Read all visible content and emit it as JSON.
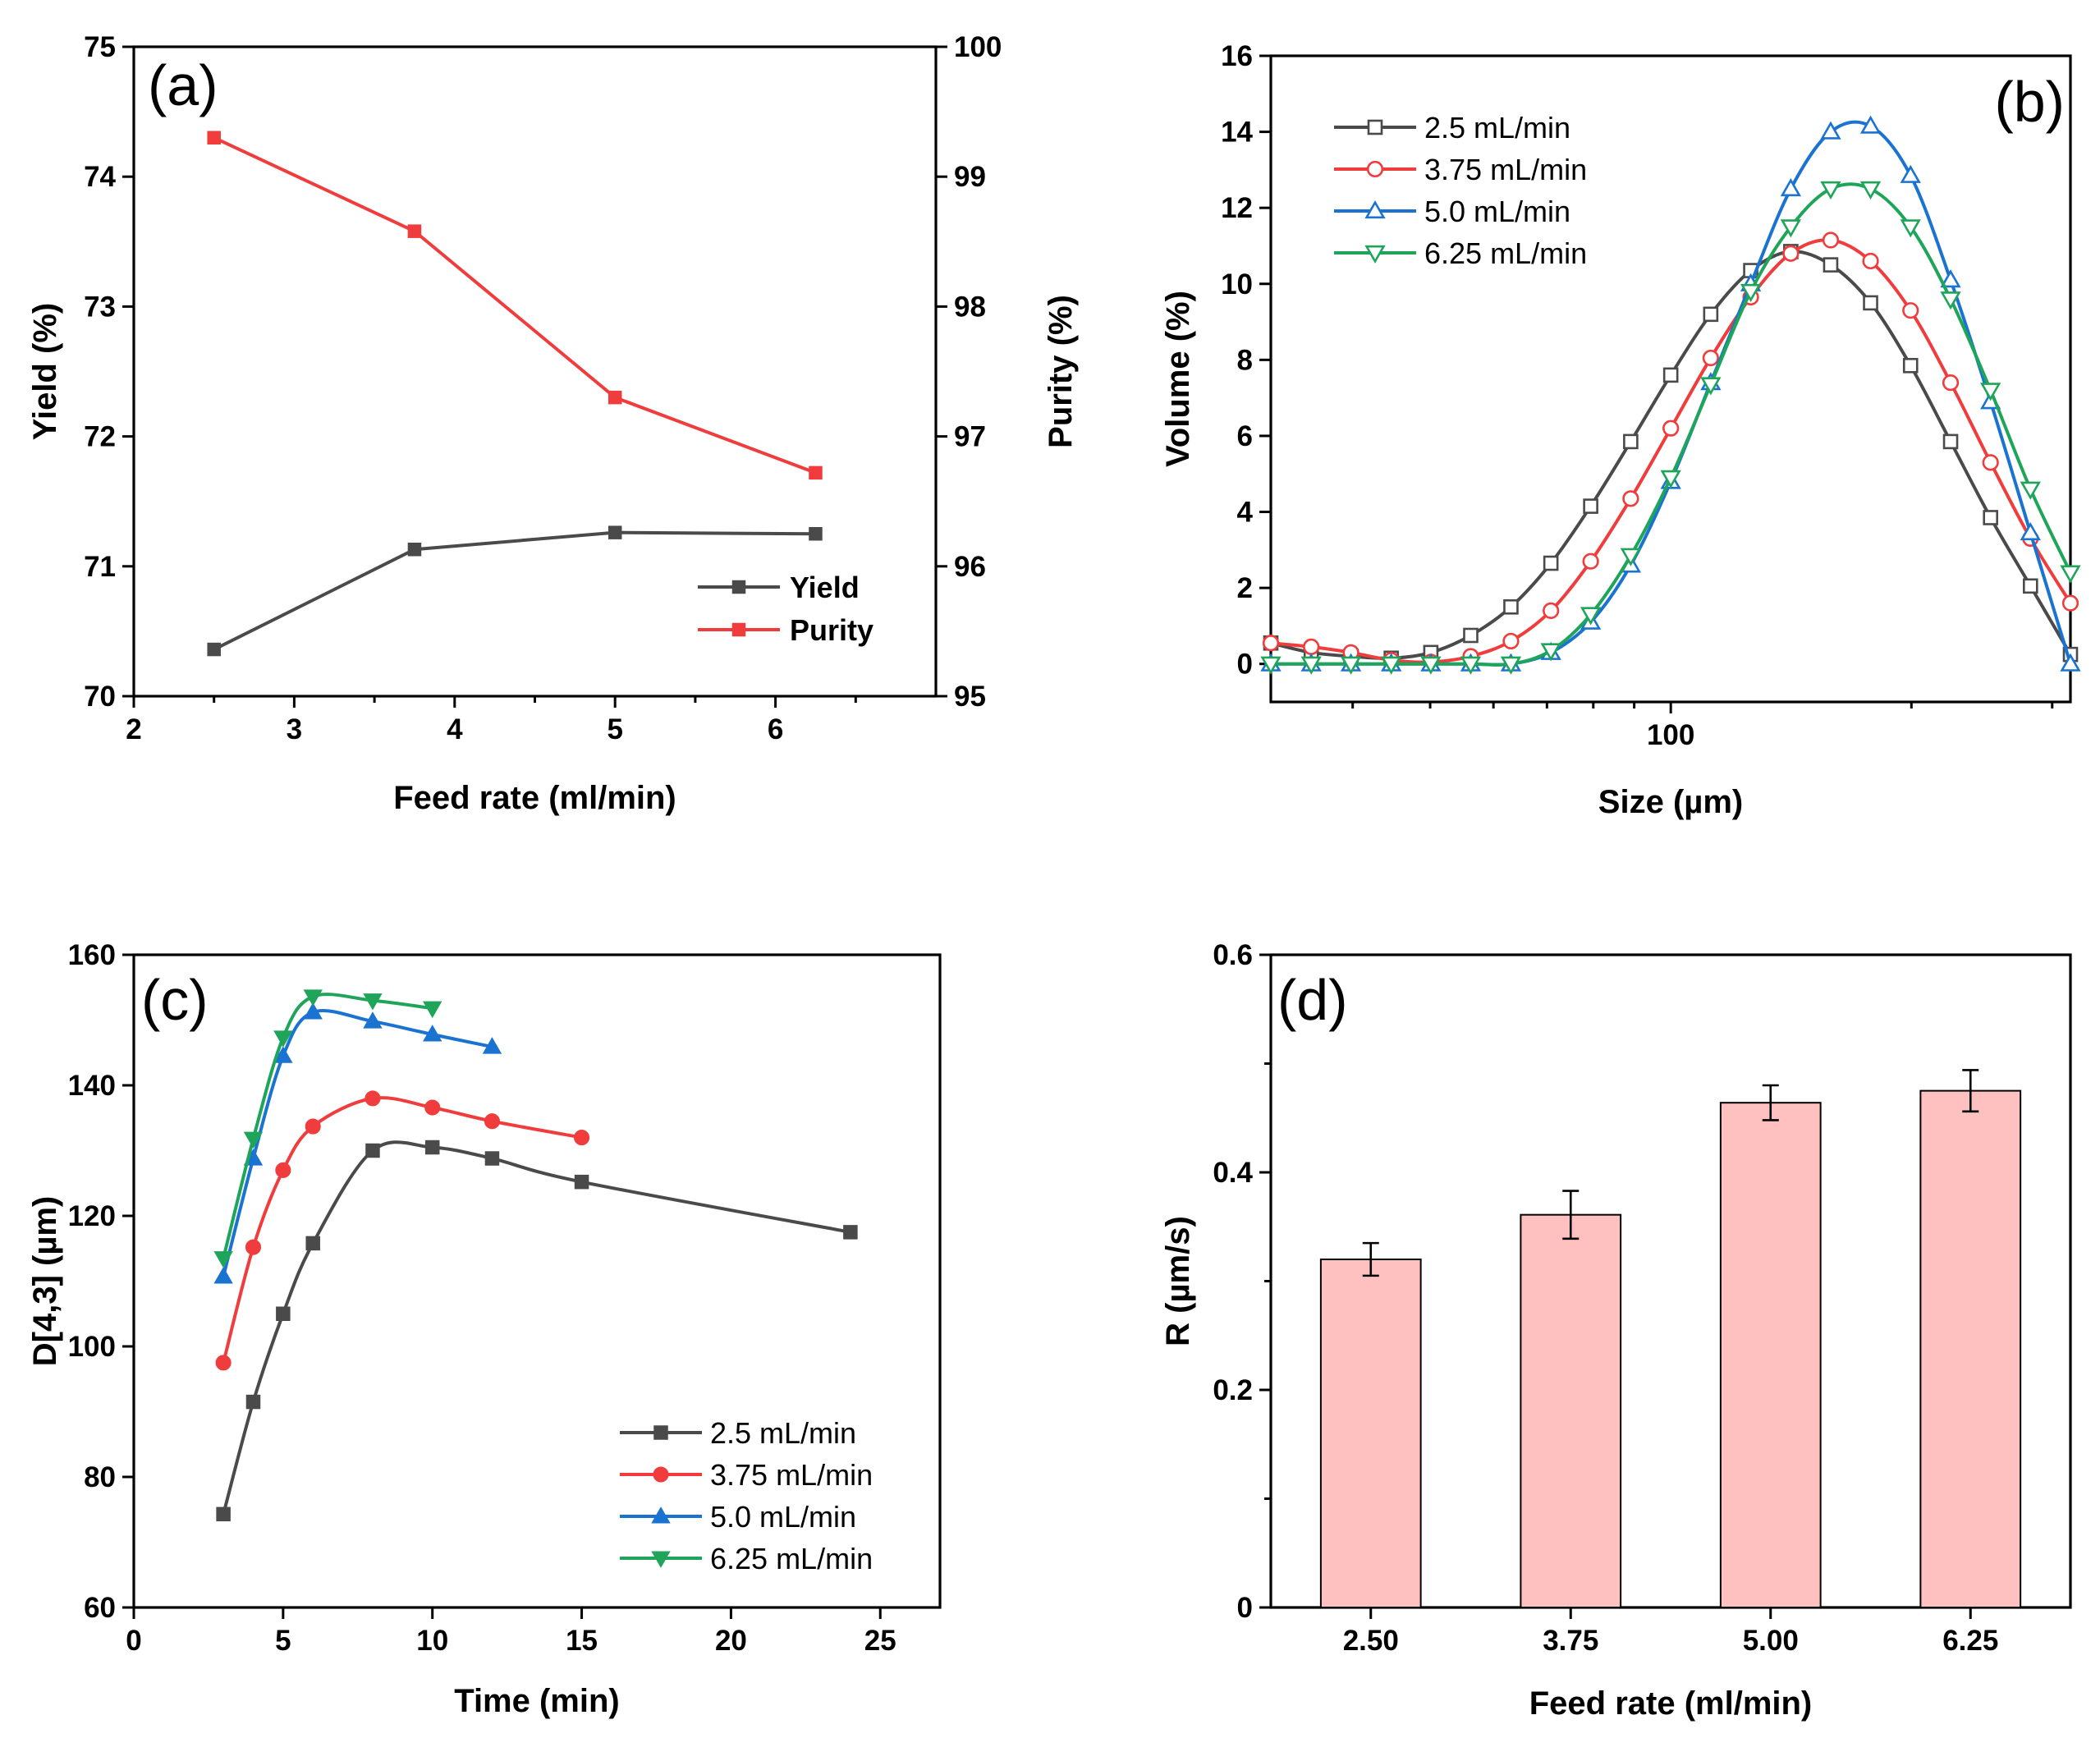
{
  "chart_data": [
    {
      "panel": "a",
      "panel_label": "(a)",
      "type": "line",
      "x": [
        2.5,
        3.75,
        5,
        6.25
      ],
      "xlabel": "Feed rate (ml/min)",
      "xlim": [
        2,
        7
      ],
      "xticks": [
        2,
        3,
        4,
        5,
        6
      ],
      "ylabel": "Yield (%)",
      "ylim": [
        70,
        75
      ],
      "yticks": [
        70,
        71,
        72,
        73,
        74,
        75
      ],
      "y2label": "Purity (%)",
      "y2lim": [
        95,
        100
      ],
      "y2ticks": [
        95,
        96,
        97,
        98,
        99,
        100
      ],
      "legend_position": "bottom-right",
      "series": [
        {
          "name": "Yield",
          "axis": "left",
          "color": "#4a4a4a",
          "marker": "square-filled",
          "values": [
            70.36,
            71.13,
            71.26,
            71.25
          ]
        },
        {
          "name": "Purity",
          "axis": "right",
          "color": "#f03c3c",
          "marker": "square-filled",
          "values": [
            99.3,
            98.58,
            97.3,
            96.72
          ]
        }
      ]
    },
    {
      "panel": "b",
      "panel_label": "(b)",
      "type": "line",
      "xscale": "log",
      "xlabel": "Size (µm)",
      "xlim": [
        31.6,
        316.2
      ],
      "xticks": [
        100
      ],
      "ylabel": "Volume (%)",
      "ylim": [
        -1,
        16
      ],
      "yticks": [
        0,
        2,
        4,
        6,
        8,
        10,
        12,
        14,
        16
      ],
      "legend_position": "top-left",
      "x": [
        31.6,
        35.5,
        39.8,
        44.7,
        50.1,
        56.2,
        63.1,
        70.8,
        79.4,
        89.1,
        100,
        112.2,
        125.9,
        141.3,
        158.5,
        177.8,
        199.5,
        223.9,
        251.2,
        281.8,
        316.2
      ],
      "series": [
        {
          "name": "2.5 mL/min",
          "color": "#4a4a4a",
          "marker": "square-open",
          "values": [
            0.55,
            0.3,
            0.2,
            0.15,
            0.3,
            0.75,
            1.5,
            2.65,
            4.15,
            5.85,
            7.6,
            9.2,
            10.35,
            10.85,
            10.5,
            9.5,
            7.85,
            5.85,
            3.85,
            2.05,
            0.25
          ]
        },
        {
          "name": "3.75 mL/min",
          "color": "#f03c3c",
          "marker": "circle-open",
          "values": [
            0.55,
            0.45,
            0.3,
            0.1,
            0.05,
            0.2,
            0.6,
            1.4,
            2.7,
            4.35,
            6.2,
            8.05,
            9.65,
            10.8,
            11.15,
            10.6,
            9.3,
            7.4,
            5.3,
            3.3,
            1.6
          ]
        },
        {
          "name": "5.0 mL/min",
          "color": "#1a73d1",
          "marker": "triangle-up-open",
          "values": [
            0.0,
            0.0,
            0.0,
            0.0,
            0.0,
            0.0,
            0.0,
            0.3,
            1.1,
            2.6,
            4.8,
            7.4,
            10.0,
            12.5,
            14.0,
            14.15,
            12.85,
            10.1,
            6.9,
            3.45,
            0.0
          ]
        },
        {
          "name": "6.25 mL/min",
          "color": "#1fa55a",
          "marker": "triangle-down-open",
          "values": [
            0.0,
            0.0,
            0.0,
            0.0,
            0.0,
            0.0,
            0.0,
            0.35,
            1.3,
            2.85,
            4.9,
            7.35,
            9.8,
            11.5,
            12.5,
            12.5,
            11.5,
            9.6,
            7.2,
            4.6,
            2.4
          ]
        }
      ]
    },
    {
      "panel": "c",
      "panel_label": "(c)",
      "type": "line",
      "xlabel": "Time (min)",
      "xlim": [
        0,
        27
      ],
      "xticks": [
        0,
        5,
        10,
        15,
        20,
        25
      ],
      "ylabel": "D[4,3] (µm)",
      "ylim": [
        60,
        160
      ],
      "yticks": [
        60,
        80,
        100,
        120,
        140,
        160
      ],
      "legend_position": "bottom-right",
      "series": [
        {
          "name": "2.5 mL/min",
          "color": "#4a4a4a",
          "marker": "square-filled",
          "x": [
            3,
            4,
            5,
            6,
            8,
            10,
            12,
            15,
            24
          ],
          "values": [
            74.3,
            91.5,
            105.0,
            115.8,
            130.0,
            130.5,
            128.8,
            125.2,
            117.5
          ]
        },
        {
          "name": "3.75 mL/min",
          "color": "#f03c3c",
          "marker": "circle-filled",
          "x": [
            3,
            4,
            5,
            6,
            8,
            10,
            12,
            15
          ],
          "values": [
            97.5,
            115.2,
            127.0,
            133.7,
            138.0,
            136.6,
            134.5,
            132.0
          ]
        },
        {
          "name": "5.0 mL/min",
          "color": "#1a73d1",
          "marker": "triangle-up-filled",
          "x": [
            3,
            4,
            5,
            6,
            8,
            10,
            12
          ],
          "values": [
            110.7,
            128.8,
            144.5,
            151.2,
            149.8,
            147.8,
            145.9
          ]
        },
        {
          "name": "6.25 mL/min",
          "color": "#1fa55a",
          "marker": "triangle-down-filled",
          "x": [
            3,
            4,
            5,
            6,
            8,
            10
          ],
          "values": [
            113.5,
            131.8,
            147.3,
            153.6,
            153.0,
            151.8
          ]
        }
      ]
    },
    {
      "panel": "d",
      "panel_label": "(d)",
      "type": "bar",
      "categories": [
        "2.50",
        "3.75",
        "5.00",
        "6.25"
      ],
      "values": [
        0.32,
        0.361,
        0.464,
        0.475
      ],
      "errors": [
        0.015,
        0.022,
        0.016,
        0.019
      ],
      "bar_color": "#ffc0c0",
      "xlabel": "Feed rate (ml/min)",
      "ylabel": "R (µm/s)",
      "ylim": [
        0,
        0.6
      ],
      "yticks": [
        0.0,
        0.2,
        0.4,
        0.6
      ]
    }
  ]
}
